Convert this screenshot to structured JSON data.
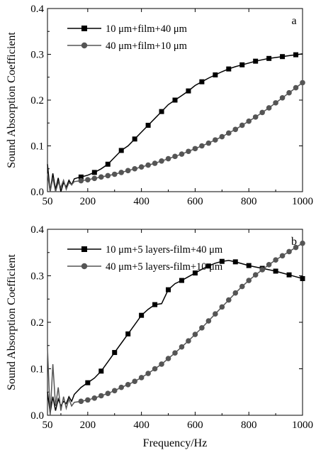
{
  "chart_data": [
    {
      "type": "line",
      "panel_label": "a",
      "title": "",
      "xlabel": "",
      "ylabel": "Sound Absorption Coefficient",
      "xlim": [
        50,
        1000
      ],
      "ylim": [
        0.0,
        0.4
      ],
      "x_ticks": [
        50,
        200,
        400,
        600,
        800,
        1000
      ],
      "x_tick_labels": [
        "50",
        "200",
        "400",
        "600",
        "800",
        "1000"
      ],
      "y_ticks": [
        0.0,
        0.1,
        0.2,
        0.3,
        0.4
      ],
      "y_tick_labels": [
        "0.0",
        "0.1",
        "0.2",
        "0.3",
        "0.4"
      ],
      "grid": false,
      "legend_position": "top-left",
      "series": [
        {
          "name": "10 μm+film+40 μm",
          "color": "#000000",
          "marker": "square",
          "x": [
            50,
            60,
            70,
            80,
            90,
            100,
            110,
            120,
            130,
            140,
            150,
            160,
            175,
            200,
            225,
            250,
            275,
            300,
            325,
            350,
            375,
            400,
            425,
            450,
            475,
            500,
            525,
            550,
            575,
            600,
            625,
            650,
            675,
            700,
            725,
            750,
            775,
            800,
            825,
            850,
            875,
            900,
            925,
            950,
            975,
            1000
          ],
          "y": [
            0.06,
            0.0,
            0.04,
            0.005,
            0.03,
            0.0,
            0.02,
            0.01,
            0.025,
            0.015,
            0.028,
            0.03,
            0.032,
            0.036,
            0.042,
            0.05,
            0.06,
            0.075,
            0.09,
            0.1,
            0.115,
            0.13,
            0.145,
            0.16,
            0.175,
            0.19,
            0.2,
            0.21,
            0.22,
            0.232,
            0.24,
            0.248,
            0.255,
            0.262,
            0.268,
            0.273,
            0.277,
            0.281,
            0.285,
            0.288,
            0.291,
            0.293,
            0.295,
            0.297,
            0.299,
            0.301
          ],
          "marker_every": 2
        },
        {
          "name": "40 μm+film+10 μm",
          "color": "#555555",
          "marker": "circle",
          "x": [
            50,
            60,
            70,
            80,
            90,
            100,
            110,
            120,
            130,
            140,
            150,
            175,
            200,
            225,
            250,
            275,
            300,
            325,
            350,
            375,
            400,
            425,
            450,
            475,
            500,
            525,
            550,
            575,
            600,
            625,
            650,
            675,
            700,
            725,
            750,
            775,
            800,
            825,
            850,
            875,
            900,
            925,
            950,
            975,
            1000
          ],
          "y": [
            0.04,
            0.0,
            0.03,
            0.0,
            0.02,
            0.01,
            0.025,
            0.005,
            0.02,
            0.015,
            0.022,
            0.024,
            0.026,
            0.029,
            0.032,
            0.035,
            0.038,
            0.042,
            0.046,
            0.05,
            0.054,
            0.058,
            0.062,
            0.067,
            0.072,
            0.077,
            0.082,
            0.088,
            0.094,
            0.1,
            0.106,
            0.113,
            0.12,
            0.128,
            0.136,
            0.145,
            0.154,
            0.163,
            0.173,
            0.183,
            0.194,
            0.205,
            0.216,
            0.227,
            0.238
          ],
          "marker_every": 1
        }
      ]
    },
    {
      "type": "line",
      "panel_label": "b",
      "title": "",
      "xlabel": "Frequency/Hz",
      "ylabel": "Sound Absorption Coefficient",
      "xlim": [
        50,
        1000
      ],
      "ylim": [
        0.0,
        0.4
      ],
      "x_ticks": [
        50,
        200,
        400,
        600,
        800,
        1000
      ],
      "x_tick_labels": [
        "50",
        "200",
        "400",
        "600",
        "800",
        "1000"
      ],
      "y_ticks": [
        0.0,
        0.1,
        0.2,
        0.3,
        0.4
      ],
      "y_tick_labels": [
        "0.0",
        "0.1",
        "0.2",
        "0.3",
        "0.4"
      ],
      "grid": false,
      "legend_position": "top-left",
      "series": [
        {
          "name": "10 μm+5 layers-film+40 μm",
          "color": "#000000",
          "marker": "square",
          "x": [
            50,
            60,
            70,
            80,
            90,
            100,
            110,
            120,
            130,
            140,
            150,
            175,
            200,
            225,
            250,
            275,
            300,
            325,
            350,
            375,
            400,
            425,
            450,
            475,
            500,
            525,
            550,
            575,
            600,
            625,
            650,
            675,
            700,
            725,
            750,
            775,
            800,
            825,
            850,
            875,
            900,
            925,
            950,
            975,
            1000
          ],
          "y": [
            0.05,
            0.005,
            0.04,
            0.01,
            0.035,
            0.02,
            0.03,
            0.025,
            0.04,
            0.03,
            0.045,
            0.06,
            0.07,
            0.08,
            0.095,
            0.115,
            0.135,
            0.155,
            0.175,
            0.195,
            0.215,
            0.228,
            0.238,
            0.24,
            0.27,
            0.283,
            0.29,
            0.298,
            0.306,
            0.314,
            0.321,
            0.327,
            0.331,
            0.333,
            0.33,
            0.326,
            0.322,
            0.319,
            0.316,
            0.313,
            0.31,
            0.306,
            0.302,
            0.298,
            0.294
          ],
          "marker_every": 2
        },
        {
          "name": "40 μm+5 layers-film+10 μm",
          "color": "#555555",
          "marker": "circle",
          "x": [
            50,
            60,
            70,
            80,
            90,
            100,
            110,
            120,
            130,
            140,
            150,
            175,
            200,
            225,
            250,
            275,
            300,
            325,
            350,
            375,
            400,
            425,
            450,
            475,
            500,
            525,
            550,
            575,
            600,
            625,
            650,
            675,
            700,
            725,
            750,
            775,
            800,
            825,
            850,
            875,
            900,
            925,
            950,
            975,
            1000
          ],
          "y": [
            0.145,
            0.0,
            0.11,
            0.02,
            0.06,
            0.01,
            0.04,
            0.015,
            0.035,
            0.02,
            0.028,
            0.03,
            0.033,
            0.037,
            0.042,
            0.047,
            0.053,
            0.06,
            0.066,
            0.073,
            0.081,
            0.09,
            0.1,
            0.11,
            0.122,
            0.134,
            0.147,
            0.16,
            0.174,
            0.188,
            0.203,
            0.218,
            0.233,
            0.248,
            0.263,
            0.277,
            0.29,
            0.302,
            0.313,
            0.324,
            0.334,
            0.343,
            0.352,
            0.361,
            0.37
          ],
          "marker_every": 1
        }
      ]
    }
  ]
}
